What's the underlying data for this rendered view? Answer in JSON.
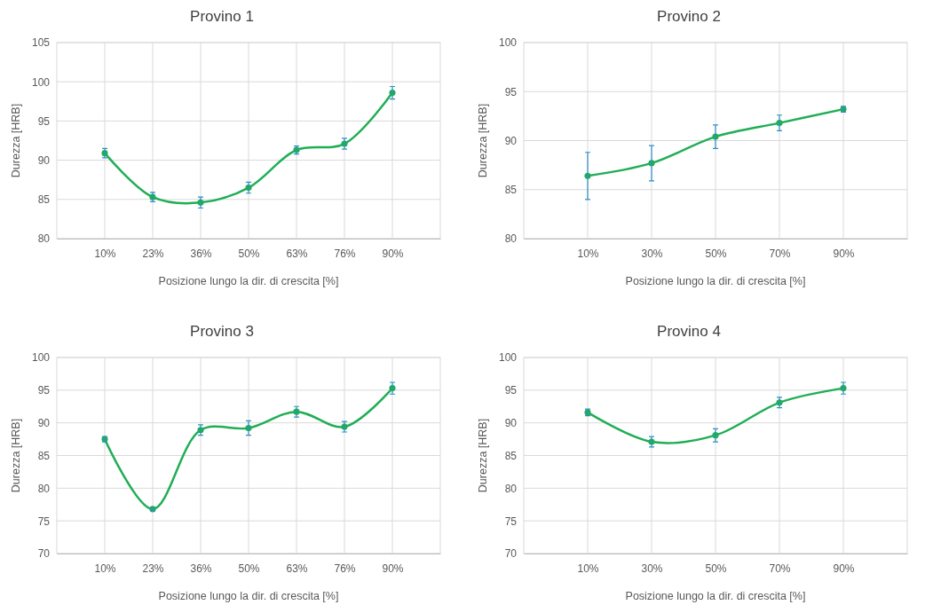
{
  "chart_data": [
    {
      "type": "line",
      "title": "Provino 1",
      "xlabel": "Posizione lungo la dir. di crescita [%]",
      "ylabel": "Durezza [HRB]",
      "categories": [
        null,
        "10%",
        "23%",
        "36%",
        "50%",
        "63%",
        "76%",
        "90%",
        null
      ],
      "series": [
        {
          "color": "#1fae55",
          "values": [
            null,
            90.9,
            85.3,
            84.6,
            86.5,
            91.3,
            92.1,
            98.6,
            null
          ],
          "errors": [
            null,
            0.6,
            0.6,
            0.7,
            0.7,
            0.5,
            0.7,
            0.8,
            null
          ]
        }
      ],
      "ylim": [
        80,
        105
      ],
      "yticks": [
        80,
        85,
        90,
        95,
        100,
        105
      ],
      "grid": true,
      "marker": "circle",
      "line_style": "solid"
    },
    {
      "type": "line",
      "title": "Provino 2",
      "xlabel": "Posizione lungo la dir. di crescita [%]",
      "ylabel": "Durezza [HRB]",
      "categories": [
        null,
        "10%",
        "30%",
        "50%",
        "70%",
        "90%",
        null
      ],
      "series": [
        {
          "color": "#1fae55",
          "values": [
            null,
            86.4,
            87.7,
            90.4,
            91.8,
            93.2,
            null
          ],
          "errors": [
            null,
            2.4,
            1.8,
            1.2,
            0.8,
            0.3,
            null
          ]
        }
      ],
      "ylim": [
        80,
        100
      ],
      "yticks": [
        80,
        85,
        90,
        95,
        100
      ],
      "grid": true,
      "marker": "circle",
      "line_style": "solid"
    },
    {
      "type": "line",
      "title": "Provino 3",
      "xlabel": "Posizione lungo la dir. di crescita [%]",
      "ylabel": "Durezza [HRB]",
      "categories": [
        null,
        "10%",
        "23%",
        "36%",
        "50%",
        "63%",
        "76%",
        "90%",
        null
      ],
      "series": [
        {
          "color": "#1fae55",
          "values": [
            null,
            87.5,
            76.8,
            88.9,
            89.2,
            91.7,
            89.4,
            95.3,
            null
          ],
          "errors": [
            null,
            0.4,
            0.2,
            0.8,
            1.1,
            0.8,
            0.8,
            0.9,
            null
          ]
        }
      ],
      "ylim": [
        70,
        100
      ],
      "yticks": [
        70,
        75,
        80,
        85,
        90,
        95,
        100
      ],
      "grid": true,
      "marker": "circle",
      "line_style": "solid"
    },
    {
      "type": "line",
      "title": "Provino 4",
      "xlabel": "Posizione lungo la dir. di crescita [%]",
      "ylabel": "Durezza [HRB]",
      "categories": [
        null,
        "10%",
        "30%",
        "50%",
        "70%",
        "90%",
        null
      ],
      "series": [
        {
          "color": "#1fae55",
          "values": [
            null,
            91.6,
            87.1,
            88.1,
            93.1,
            95.3,
            null
          ],
          "errors": [
            null,
            0.5,
            0.8,
            1.0,
            0.8,
            0.9,
            null
          ]
        }
      ],
      "ylim": [
        70,
        100
      ],
      "yticks": [
        70,
        75,
        80,
        85,
        90,
        95,
        100
      ],
      "grid": true,
      "marker": "circle",
      "line_style": "solid"
    }
  ]
}
